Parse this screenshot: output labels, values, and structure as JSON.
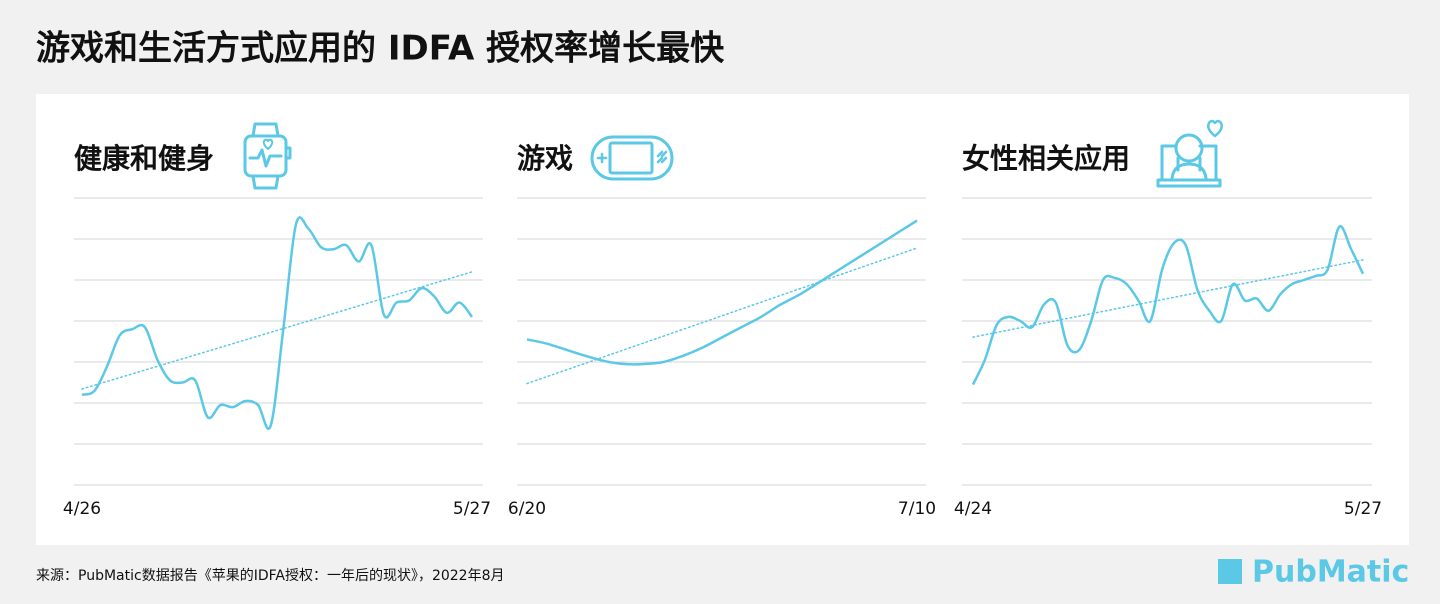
{
  "title": "游戏和生活方式应用的 IDFA 授权率增长最快",
  "chart_data": [
    {
      "type": "line",
      "title": "健康和健身",
      "color": "#5bc8e6",
      "categories": [
        "4/26",
        null,
        null,
        null,
        null,
        null,
        null,
        null,
        null,
        null,
        null,
        null,
        null,
        null,
        null,
        null,
        null,
        null,
        null,
        null,
        null,
        null,
        null,
        null,
        null,
        null,
        null,
        null,
        null,
        null,
        null,
        "5/27"
      ],
      "values": [
        2.2,
        2.3,
        2.9,
        3.65,
        3.8,
        3.85,
        3.05,
        2.55,
        2.5,
        2.55,
        1.65,
        1.95,
        1.9,
        2.05,
        1.95,
        1.45,
        3.8,
        6.35,
        6.25,
        5.8,
        5.75,
        5.85,
        5.45,
        5.85,
        4.15,
        4.45,
        4.5,
        4.8,
        4.6,
        4.2,
        4.45,
        4.1
      ],
      "ylim": [
        0,
        7
      ],
      "yticks": [
        0,
        1,
        2,
        3,
        4,
        5,
        6,
        7
      ],
      "grid": true
    },
    {
      "type": "line",
      "title": "游戏",
      "color": "#5bc8e6",
      "categories": [
        "6/20",
        null,
        null,
        null,
        null,
        null,
        null,
        null,
        null,
        null,
        null,
        null,
        null,
        null,
        null,
        null,
        null,
        null,
        null,
        null,
        "7/10"
      ],
      "values": [
        3.55,
        3.45,
        3.3,
        3.15,
        3.02,
        2.95,
        2.95,
        3.0,
        3.15,
        3.35,
        3.6,
        3.85,
        4.1,
        4.4,
        4.65,
        4.95,
        5.25,
        5.55,
        5.85,
        6.15,
        6.45
      ],
      "ylim": [
        0,
        7
      ],
      "yticks": [
        0,
        1,
        2,
        3,
        4,
        5,
        6,
        7
      ],
      "grid": true
    },
    {
      "type": "line",
      "title": "女性相关应用",
      "color": "#5bc8e6",
      "categories": [
        "4/24",
        null,
        null,
        null,
        null,
        null,
        null,
        null,
        null,
        null,
        null,
        null,
        null,
        null,
        null,
        null,
        null,
        null,
        null,
        null,
        null,
        null,
        null,
        null,
        null,
        null,
        null,
        null,
        null,
        null,
        null,
        null,
        null,
        "5/27"
      ],
      "values": [
        2.45,
        3.05,
        3.9,
        4.1,
        4.0,
        3.85,
        4.4,
        4.45,
        3.4,
        3.3,
        4.0,
        5.0,
        5.05,
        4.9,
        4.5,
        4.0,
        5.25,
        5.9,
        5.85,
        4.75,
        4.25,
        4.0,
        4.9,
        4.5,
        4.55,
        4.25,
        4.65,
        4.9,
        5.0,
        5.1,
        5.25,
        6.3,
        5.75,
        5.15
      ],
      "ylim": [
        0,
        7
      ],
      "yticks": [
        0,
        1,
        2,
        3,
        4,
        5,
        6,
        7
      ],
      "grid": true
    }
  ],
  "source": "来源：PubMatic数据报告《苹果的IDFA授权：一年后的现状》，2022年8月",
  "brand": "PubMatic"
}
